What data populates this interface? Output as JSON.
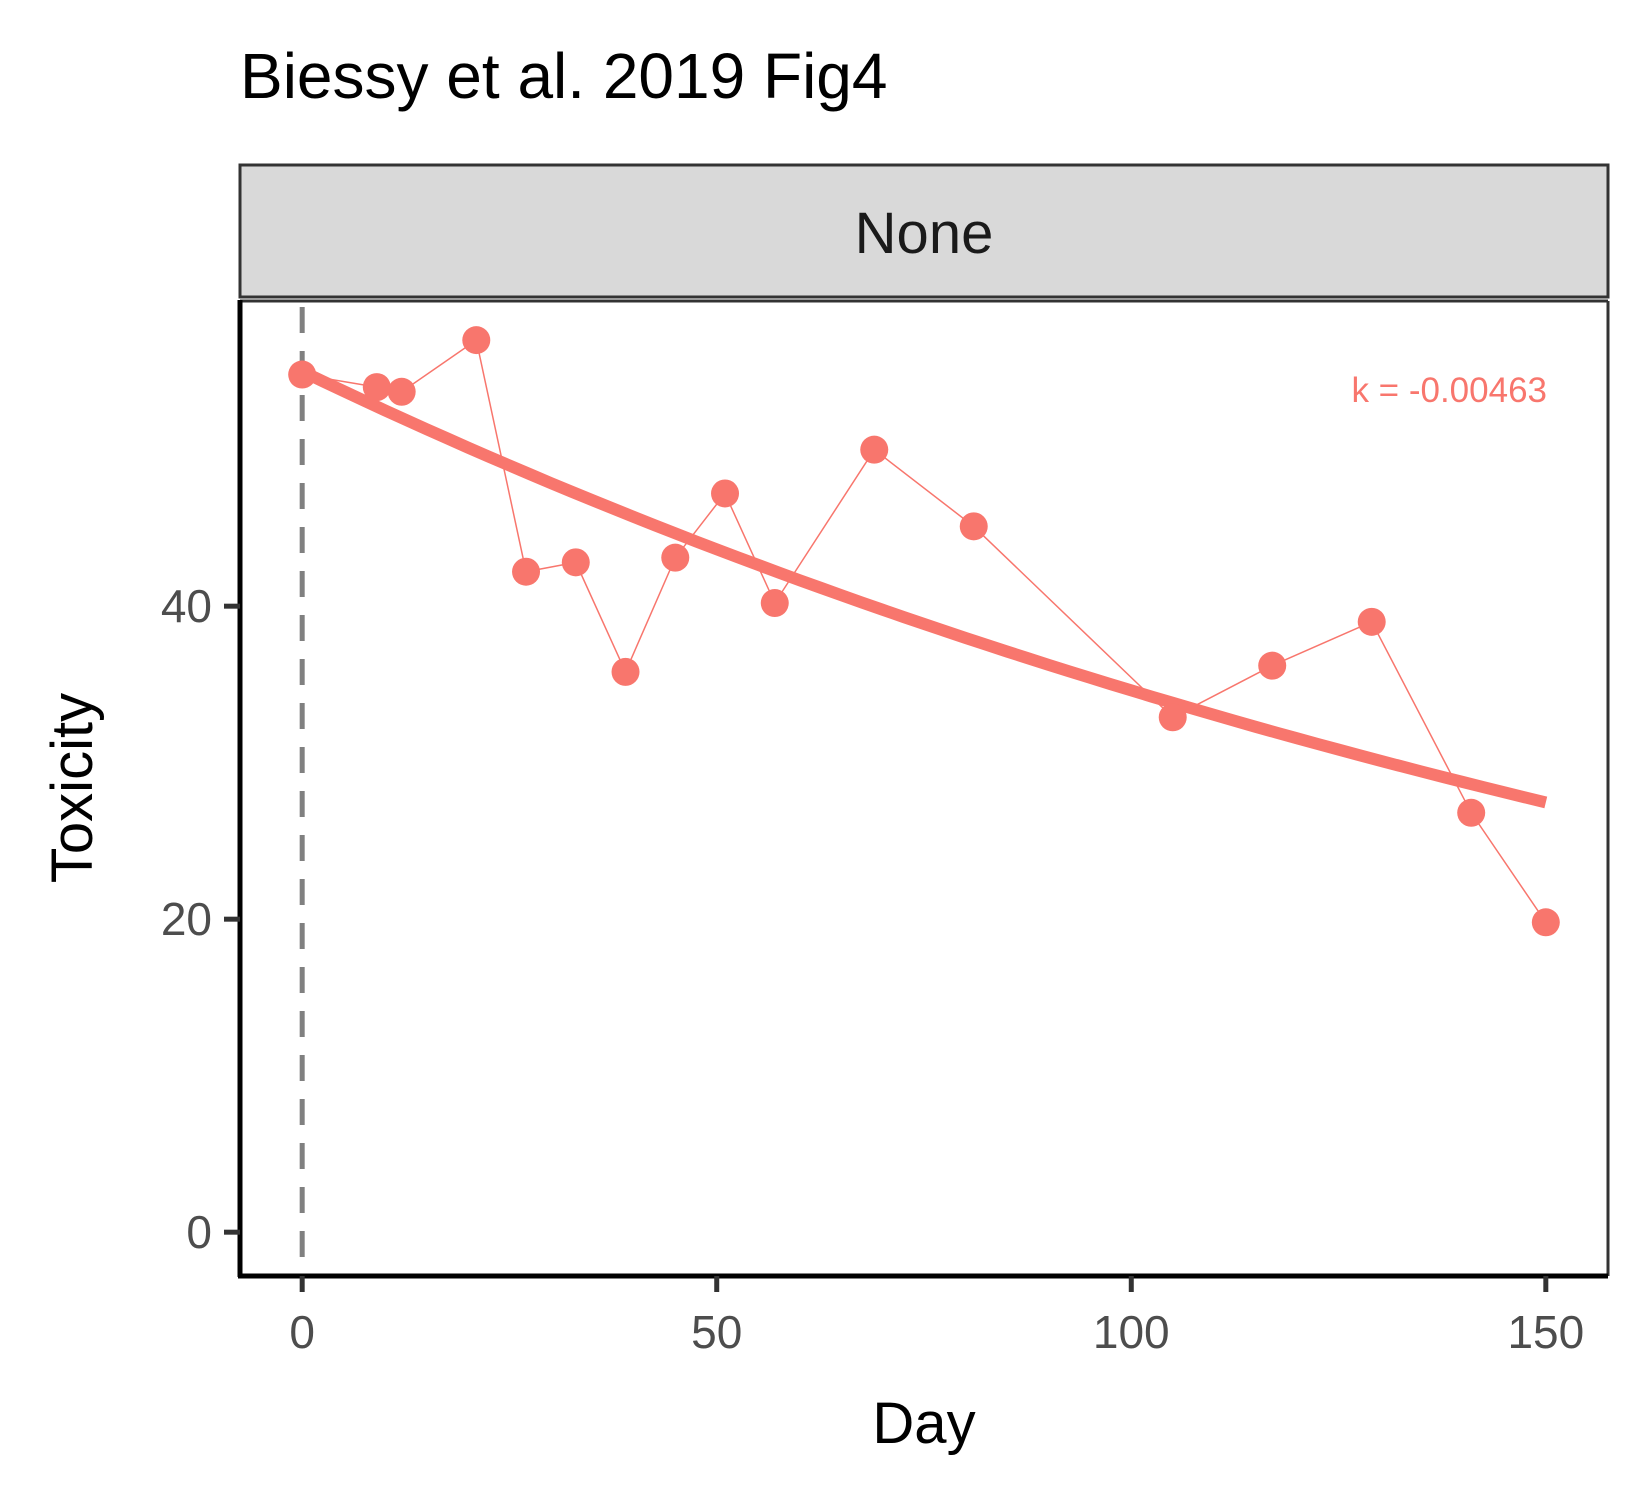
{
  "chart_data": {
    "type": "line",
    "title": "Biessy et al. 2019 Fig4",
    "facet_label": "None",
    "xlabel": "Day",
    "ylabel": "Toxicity",
    "xlim": [
      -7.5,
      157.5
    ],
    "ylim": [
      -2.8,
      59.5
    ],
    "x_ticks": [
      0,
      50,
      100,
      150
    ],
    "y_ticks": [
      0,
      20,
      40
    ],
    "grid": false,
    "legend": "none",
    "reference_line": {
      "x": 0,
      "style": "dashed",
      "color": "#808080"
    },
    "series": [
      {
        "color": "#F8766D",
        "points": [
          {
            "x": 0,
            "y": 54.8
          },
          {
            "x": 9,
            "y": 54.0
          },
          {
            "x": 12,
            "y": 53.7
          },
          {
            "x": 21,
            "y": 57.0
          },
          {
            "x": 27,
            "y": 42.2
          },
          {
            "x": 33,
            "y": 42.8
          },
          {
            "x": 39,
            "y": 35.8
          },
          {
            "x": 45,
            "y": 43.1
          },
          {
            "x": 51,
            "y": 47.2
          },
          {
            "x": 57,
            "y": 40.2
          },
          {
            "x": 69,
            "y": 50.0
          },
          {
            "x": 81,
            "y": 45.1
          },
          {
            "x": 105,
            "y": 32.9
          },
          {
            "x": 117,
            "y": 36.2
          },
          {
            "x": 129,
            "y": 39.0
          },
          {
            "x": 141,
            "y": 26.8
          },
          {
            "x": 150,
            "y": 19.8
          }
        ]
      }
    ],
    "fit": {
      "model": "exponential",
      "y0": 55.0,
      "k": -0.00463,
      "x_range": [
        0,
        150
      ],
      "color": "#F8766D",
      "label": "k = -0.00463"
    }
  }
}
